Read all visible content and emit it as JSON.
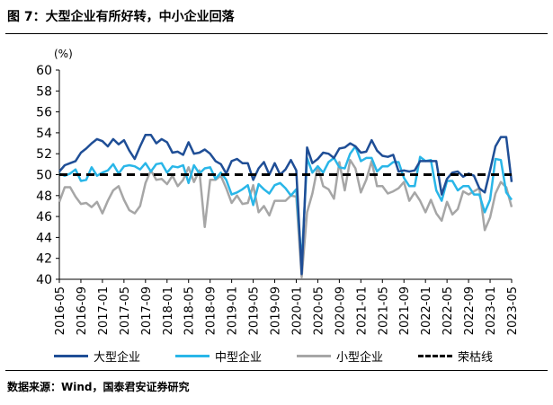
{
  "figure_title": "图 7：大型企业有所好转，中小企业回落",
  "source_note": "数据来源：Wind，国泰君安证券研究",
  "chart_data": {
    "type": "line",
    "unit_label": "(%)",
    "ylim": [
      40,
      60
    ],
    "yticks": [
      40,
      42,
      44,
      46,
      48,
      50,
      52,
      54,
      56,
      58,
      60
    ],
    "grid": false,
    "legend_position": "bottom",
    "x_tick_labels": [
      "2016-05",
      "2016-09",
      "2017-01",
      "2017-05",
      "2017-09",
      "2018-01",
      "2018-05",
      "2018-09",
      "2019-01",
      "2019-05",
      "2019-09",
      "2020-01",
      "2020-05",
      "2020-09",
      "2021-01",
      "2021-05",
      "2021-09",
      "2022-01",
      "2022-05",
      "2022-09",
      "2023-01",
      "2023-05"
    ],
    "x": [
      "2016-05",
      "2016-06",
      "2016-07",
      "2016-08",
      "2016-09",
      "2016-10",
      "2016-11",
      "2016-12",
      "2017-01",
      "2017-02",
      "2017-03",
      "2017-04",
      "2017-05",
      "2017-06",
      "2017-07",
      "2017-08",
      "2017-09",
      "2017-10",
      "2017-11",
      "2017-12",
      "2018-01",
      "2018-02",
      "2018-03",
      "2018-04",
      "2018-05",
      "2018-06",
      "2018-07",
      "2018-08",
      "2018-09",
      "2018-10",
      "2018-11",
      "2018-12",
      "2019-01",
      "2019-02",
      "2019-03",
      "2019-04",
      "2019-05",
      "2019-06",
      "2019-07",
      "2019-08",
      "2019-09",
      "2019-10",
      "2019-11",
      "2019-12",
      "2020-01",
      "2020-02",
      "2020-03",
      "2020-04",
      "2020-05",
      "2020-06",
      "2020-07",
      "2020-08",
      "2020-09",
      "2020-10",
      "2020-11",
      "2020-12",
      "2021-01",
      "2021-02",
      "2021-03",
      "2021-04",
      "2021-05",
      "2021-06",
      "2021-07",
      "2021-08",
      "2021-09",
      "2021-10",
      "2021-11",
      "2021-12",
      "2022-01",
      "2022-02",
      "2022-03",
      "2022-04",
      "2022-05",
      "2022-06",
      "2022-07",
      "2022-08",
      "2022-09",
      "2022-10",
      "2022-11",
      "2022-12",
      "2023-01",
      "2023-02",
      "2023-03",
      "2023-04",
      "2023-05"
    ],
    "series": [
      {
        "name": "大型企业",
        "color": "#1f4e96",
        "dash": "solid",
        "values": [
          50.3,
          50.9,
          51.1,
          51.3,
          52.1,
          52.5,
          53.0,
          53.4,
          53.2,
          52.7,
          53.4,
          52.9,
          53.3,
          52.3,
          51.5,
          52.7,
          53.8,
          53.8,
          53.0,
          53.4,
          53.1,
          52.1,
          52.2,
          51.9,
          53.1,
          52.0,
          52.1,
          52.4,
          52.0,
          51.3,
          51.0,
          50.1,
          51.3,
          51.5,
          51.1,
          51.1,
          49.5,
          50.6,
          51.2,
          50.0,
          51.1,
          50.0,
          50.5,
          51.4,
          50.4,
          40.5,
          52.6,
          51.1,
          51.5,
          52.1,
          52.0,
          51.6,
          52.5,
          52.6,
          53.0,
          52.7,
          52.1,
          52.2,
          53.3,
          52.3,
          51.8,
          51.7,
          51.9,
          50.3,
          50.4,
          50.3,
          50.4,
          51.3,
          51.3,
          51.3,
          51.3,
          48.1,
          49.6,
          50.2,
          50.3,
          49.8,
          50.1,
          49.9,
          48.7,
          48.3,
          50.4,
          52.7,
          53.6,
          53.6,
          49.3
        ]
      },
      {
        "name": "中型企业",
        "color": "#29b6e8",
        "dash": "solid",
        "values": [
          50.1,
          49.9,
          50.1,
          50.5,
          49.4,
          49.5,
          50.7,
          49.9,
          50.2,
          50.4,
          51.0,
          50.1,
          50.8,
          50.9,
          50.8,
          50.5,
          51.1,
          50.3,
          51.0,
          51.1,
          50.2,
          50.8,
          50.7,
          50.9,
          49.2,
          50.9,
          50.1,
          50.6,
          50.7,
          49.6,
          50.2,
          49.5,
          48.1,
          48.3,
          48.6,
          49.0,
          47.1,
          49.1,
          48.6,
          48.2,
          49.0,
          49.2,
          48.7,
          48.0,
          48.6,
          41.5,
          51.6,
          50.2,
          50.8,
          50.2,
          51.2,
          51.6,
          50.7,
          50.6,
          52.0,
          52.7,
          51.3,
          51.6,
          51.6,
          50.3,
          50.8,
          50.8,
          51.2,
          51.2,
          49.7,
          48.9,
          48.9,
          51.7,
          51.3,
          51.4,
          48.5,
          47.5,
          49.4,
          49.4,
          48.5,
          48.9,
          48.9,
          48.1,
          48.1,
          46.4,
          47.6,
          51.5,
          51.4,
          48.3,
          47.6
        ]
      },
      {
        "name": "小型企业",
        "color": "#a6a6a6",
        "dash": "solid",
        "values": [
          47.4,
          48.8,
          48.8,
          47.9,
          47.2,
          47.3,
          46.9,
          47.4,
          46.3,
          47.5,
          48.5,
          48.9,
          47.6,
          46.6,
          46.3,
          47.0,
          49.2,
          50.4,
          49.5,
          49.6,
          49.1,
          49.9,
          48.9,
          49.5,
          50.7,
          49.3,
          50.4,
          45.0,
          49.5,
          49.5,
          49.9,
          48.7,
          47.3,
          48.0,
          47.2,
          47.3,
          49.0,
          46.4,
          47.0,
          46.1,
          47.5,
          47.5,
          47.5,
          48.0,
          47.9,
          40.2,
          46.4,
          48.2,
          50.8,
          48.9,
          48.6,
          47.7,
          51.2,
          48.5,
          51.4,
          50.6,
          48.3,
          49.5,
          51.3,
          48.9,
          48.9,
          48.2,
          48.4,
          48.7,
          49.3,
          47.5,
          48.3,
          47.5,
          46.4,
          47.6,
          46.3,
          45.6,
          47.4,
          46.2,
          46.7,
          48.4,
          48.1,
          48.4,
          48.7,
          44.7,
          45.9,
          48.2,
          49.3,
          48.8,
          46.9
        ]
      },
      {
        "name": "荣枯线",
        "color": "#000000",
        "dash": "dashed",
        "values": [
          50,
          50,
          50,
          50,
          50,
          50,
          50,
          50,
          50,
          50,
          50,
          50,
          50,
          50,
          50,
          50,
          50,
          50,
          50,
          50,
          50,
          50,
          50,
          50,
          50,
          50,
          50,
          50,
          50,
          50,
          50,
          50,
          50,
          50,
          50,
          50,
          50,
          50,
          50,
          50,
          50,
          50,
          50,
          50,
          50,
          50,
          50,
          50,
          50,
          50,
          50,
          50,
          50,
          50,
          50,
          50,
          50,
          50,
          50,
          50,
          50,
          50,
          50,
          50,
          50,
          50,
          50,
          50,
          50,
          50,
          50,
          50,
          50,
          50,
          50,
          50,
          50,
          50,
          50,
          50,
          50,
          50,
          50,
          50,
          50
        ]
      }
    ]
  }
}
